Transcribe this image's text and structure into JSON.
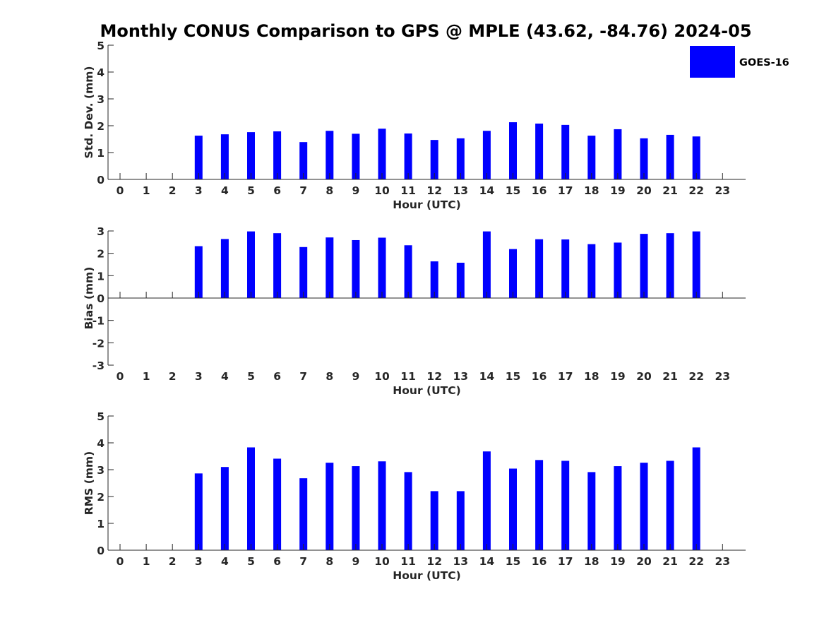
{
  "title": "Monthly CONUS Comparison to GPS @ MPLE (43.62, -84.76) 2024-05",
  "legend": {
    "label": "GOES-16",
    "color": "#0000ff"
  },
  "chart_data": [
    {
      "type": "bar",
      "x": [
        0,
        1,
        2,
        3,
        4,
        5,
        6,
        7,
        8,
        9,
        10,
        11,
        12,
        13,
        14,
        15,
        16,
        17,
        18,
        19,
        20,
        21,
        22,
        23
      ],
      "values": [
        null,
        null,
        null,
        1.63,
        1.68,
        1.76,
        1.79,
        1.39,
        1.81,
        1.7,
        1.89,
        1.71,
        1.47,
        1.53,
        1.81,
        2.13,
        2.08,
        2.03,
        1.63,
        1.87,
        1.53,
        1.66,
        1.6,
        null
      ],
      "xlabel": "Hour (UTC)",
      "ylabel": "Std. Dev. (mm)",
      "ylim": [
        0,
        5
      ],
      "yticks": [
        0,
        1,
        2,
        3,
        4,
        5
      ],
      "color": "#0000ff"
    },
    {
      "type": "bar",
      "x": [
        0,
        1,
        2,
        3,
        4,
        5,
        6,
        7,
        8,
        9,
        10,
        11,
        12,
        13,
        14,
        15,
        16,
        17,
        18,
        19,
        20,
        21,
        22,
        23
      ],
      "values": [
        null,
        null,
        null,
        2.32,
        2.64,
        2.98,
        2.9,
        2.28,
        2.71,
        2.59,
        2.7,
        2.36,
        1.64,
        1.58,
        2.98,
        2.19,
        2.63,
        2.62,
        2.41,
        2.48,
        2.87,
        2.9,
        2.98,
        null
      ],
      "xlabel": "Hour (UTC)",
      "ylabel": "Bias (mm)",
      "ylim": [
        -3,
        3
      ],
      "yticks": [
        -3,
        -2,
        -1,
        0,
        1,
        2,
        3
      ],
      "color": "#0000ff"
    },
    {
      "type": "bar",
      "x": [
        0,
        1,
        2,
        3,
        4,
        5,
        6,
        7,
        8,
        9,
        10,
        11,
        12,
        13,
        14,
        15,
        16,
        17,
        18,
        19,
        20,
        21,
        22,
        23
      ],
      "values": [
        null,
        null,
        null,
        2.86,
        3.1,
        3.83,
        3.41,
        2.68,
        3.26,
        3.13,
        3.31,
        2.91,
        2.2,
        2.2,
        3.68,
        3.04,
        3.36,
        3.33,
        2.91,
        3.13,
        3.26,
        3.33,
        3.83,
        null
      ],
      "xlabel": "Hour (UTC)",
      "ylabel": "RMS (mm)",
      "ylim": [
        0,
        5
      ],
      "yticks": [
        0,
        1,
        2,
        3,
        4,
        5
      ],
      "color": "#0000ff"
    }
  ]
}
